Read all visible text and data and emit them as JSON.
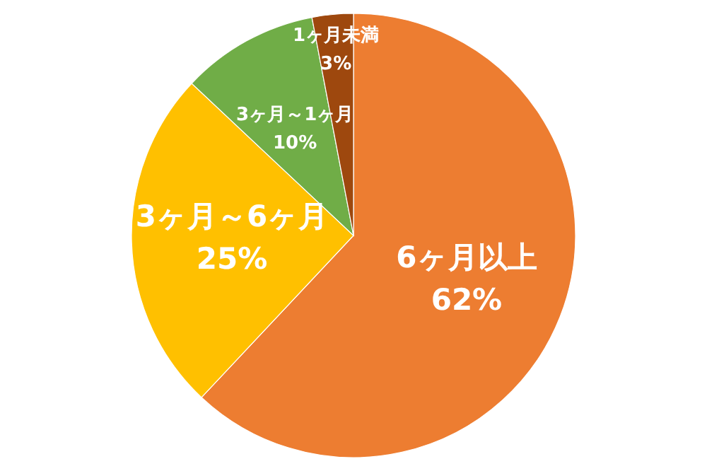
{
  "chart_data": {
    "type": "pie",
    "categories": [
      "6ヶ月以上",
      "3ヶ月～6ヶ月",
      "3ヶ月～1ヶ月",
      "1ヶ月未満"
    ],
    "values": [
      62,
      25,
      10,
      3
    ],
    "value_labels": [
      "62%",
      "25%",
      "10%",
      "3%"
    ],
    "colors": [
      "#ed7d31",
      "#ffc000",
      "#70ad47",
      "#9e480e"
    ]
  }
}
